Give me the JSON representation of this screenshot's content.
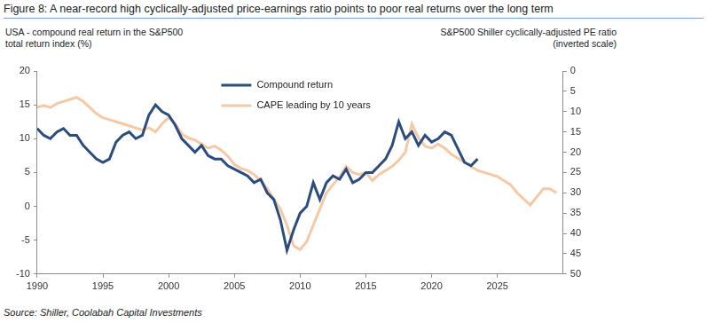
{
  "chart_data": {
    "type": "line",
    "title": "Figure 8: A near-record high cyclically-adjusted price-earnings ratio points to poor real returns over the long term",
    "y_label": "USA - compound real return in the S&P500\ntotal return index (%)",
    "y2_label": "S&P500 Shiller cyclically-adjusted PE ratio\n(inverted scale)",
    "source": "Source: Shiller, Coolabah Capital Investments",
    "x": [
      1990,
      1990.5,
      1991,
      1991.5,
      1992,
      1992.5,
      1993,
      1993.5,
      1994,
      1994.5,
      1995,
      1995.5,
      1996,
      1996.5,
      1997,
      1997.5,
      1998,
      1998.5,
      1999,
      1999.5,
      2000,
      2000.5,
      2001,
      2001.5,
      2002,
      2002.5,
      2003,
      2003.5,
      2004,
      2004.5,
      2005,
      2005.5,
      2006,
      2006.5,
      2007,
      2007.5,
      2008,
      2008.5,
      2009,
      2009.5,
      2010,
      2010.5,
      2011,
      2011.5,
      2012,
      2012.5,
      2013,
      2013.5,
      2014,
      2014.5,
      2015,
      2015.5,
      2016,
      2016.5,
      2017,
      2017.5,
      2018,
      2018.5,
      2019,
      2019.5,
      2020,
      2020.5,
      2021,
      2021.5,
      2022,
      2022.5,
      2023,
      2023.5,
      2024,
      2024.5,
      2025,
      2025.5,
      2026,
      2026.5,
      2027,
      2027.5,
      2028,
      2028.5,
      2029,
      2029.5
    ],
    "series": [
      {
        "name": "Compound return",
        "color": "#2b4c7e",
        "axis": "y",
        "values": [
          11.5,
          10.5,
          10,
          11,
          11.5,
          10.5,
          10.5,
          9,
          8,
          7,
          6.5,
          7,
          9.5,
          10.5,
          11,
          10,
          10.5,
          13.5,
          15,
          14,
          13.5,
          12,
          10,
          9,
          8,
          9,
          7.5,
          7,
          7,
          6,
          5.5,
          5,
          4.5,
          3.5,
          4,
          2,
          1,
          -2,
          -6.5,
          -3.5,
          -1,
          0,
          3.5,
          1,
          3.5,
          4.5,
          4,
          5.5,
          3.5,
          4,
          5,
          5,
          6,
          7,
          9,
          12.5,
          10,
          11,
          9,
          10.5,
          9.5,
          10,
          11,
          10.5,
          8.5,
          6.5,
          6,
          7,
          null,
          null,
          null,
          null,
          null,
          null,
          null,
          null,
          null,
          null,
          null,
          null
        ]
      },
      {
        "name": "CAPE leading by 10 years",
        "color": "#f6c9a6",
        "axis": "y2",
        "values": [
          9,
          8.5,
          9,
          8,
          7.5,
          7,
          6.5,
          7.5,
          9,
          10.5,
          11.5,
          12,
          12.5,
          13,
          13.5,
          14,
          14.5,
          14,
          15,
          13,
          11.5,
          13,
          15.5,
          16.5,
          17,
          18,
          19,
          18.5,
          19.5,
          21,
          23,
          24,
          24.5,
          25.5,
          27,
          29,
          31.5,
          34,
          38,
          43,
          44,
          42,
          38,
          34,
          30,
          28,
          26,
          23.5,
          25,
          25.5,
          25,
          27,
          25.5,
          24.5,
          23.5,
          22,
          20,
          13,
          16.5,
          18.5,
          19,
          18,
          19,
          20.5,
          21.5,
          22.5,
          23.5,
          24.5,
          25,
          25.5,
          26,
          27,
          28,
          30,
          31.5,
          33,
          31,
          29,
          29,
          30
        ]
      }
    ],
    "xlim": [
      1990,
      2030
    ],
    "xticks": [
      1990,
      1995,
      2000,
      2005,
      2010,
      2015,
      2020,
      2025
    ],
    "ylim": [
      -10,
      20
    ],
    "yticks": [
      -10,
      -5,
      0,
      5,
      10,
      15,
      20
    ],
    "y2lim": [
      50,
      0
    ],
    "y2ticks": [
      0,
      5,
      10,
      15,
      20,
      25,
      30,
      35,
      40,
      45,
      50
    ],
    "grid": false,
    "legend": "top"
  }
}
